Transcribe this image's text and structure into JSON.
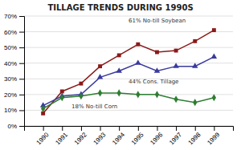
{
  "chart_data": {
    "type": "line",
    "title": "TILLAGE TRENDS DURING 1990S",
    "x": [
      1990,
      1991,
      1992,
      1993,
      1994,
      1995,
      1996,
      1997,
      1998,
      1999
    ],
    "series": [
      {
        "color": "#8B1A1A",
        "marker": "square",
        "values": [
          8,
          22,
          27,
          38,
          45,
          52,
          47,
          48,
          54,
          61
        ]
      },
      {
        "color": "#3A3A9F",
        "marker": "triangle",
        "values": [
          13,
          19,
          20,
          31,
          35,
          40,
          35,
          38,
          38,
          44
        ]
      },
      {
        "color": "#2E7D32",
        "marker": "diamond",
        "values": [
          11,
          18,
          19,
          21,
          21,
          20,
          20,
          17,
          15,
          18
        ]
      }
    ],
    "xlim": [
      1989,
      2000
    ],
    "xticks": [
      1990,
      1991,
      1992,
      1993,
      1994,
      1995,
      1996,
      1997,
      1998,
      1999
    ],
    "ylim": [
      0,
      70
    ],
    "yticks": [
      {
        "value": 0,
        "label": "0%"
      },
      {
        "value": 10,
        "label": "10%"
      },
      {
        "value": 20,
        "label": "20%"
      },
      {
        "value": 30,
        "label": "30%"
      },
      {
        "value": 40,
        "label": "40%"
      },
      {
        "value": 50,
        "label": "50%"
      },
      {
        "value": 60,
        "label": "60%"
      },
      {
        "value": 70,
        "label": "70%"
      }
    ],
    "grid": true,
    "annotations": [
      "61% No-till Soybean",
      "44% Cons. Tillage",
      "18% No-till Corn"
    ]
  }
}
